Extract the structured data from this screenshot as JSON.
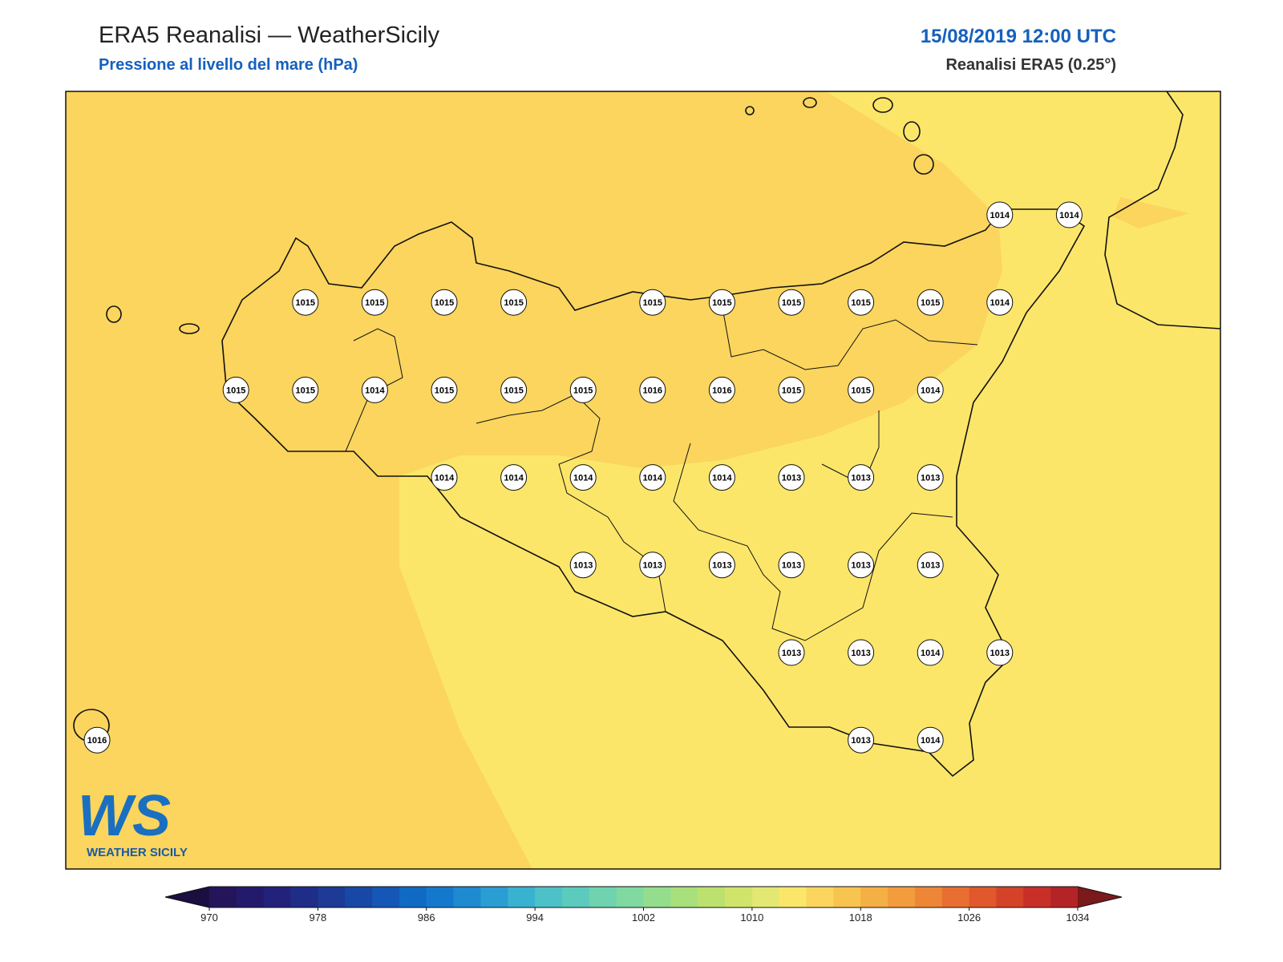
{
  "header": {
    "title": "ERA5 Reanalisi — WeatherSicily",
    "subtitle": "Pressione al livello del mare (hPa)",
    "date": "15/08/2019 12:00 UTC",
    "source": "Reanalisi ERA5 (0.25°)"
  },
  "logo": {
    "mark": "WS",
    "text": "WEATHER SICILY"
  },
  "stations": {
    "grid": [
      [
        null,
        null,
        null,
        null,
        null,
        null,
        null,
        null,
        null,
        null,
        null,
        null,
        null,
        1014,
        1014
      ],
      [
        null,
        null,
        null,
        1015,
        1015,
        1015,
        1015,
        null,
        1015,
        1015,
        1015,
        1015,
        1015,
        1014,
        null
      ],
      [
        null,
        null,
        1015,
        1015,
        1014,
        1015,
        1015,
        1015,
        1016,
        1016,
        1015,
        1015,
        1014,
        null,
        null
      ],
      [
        null,
        null,
        null,
        null,
        null,
        1014,
        1014,
        1014,
        1014,
        1014,
        1013,
        1013,
        1013,
        null,
        null
      ],
      [
        null,
        null,
        null,
        null,
        null,
        null,
        null,
        1013,
        1013,
        1013,
        1013,
        1013,
        1013,
        null,
        null
      ],
      [
        null,
        null,
        null,
        null,
        null,
        null,
        null,
        null,
        null,
        null,
        1013,
        1013,
        1014,
        1013,
        null
      ],
      [
        1016,
        null,
        null,
        null,
        null,
        null,
        null,
        null,
        null,
        null,
        null,
        1013,
        1014,
        null,
        null
      ]
    ]
  },
  "colorbar": {
    "lim": [
      970,
      1034
    ],
    "ticks": [
      970,
      978,
      986,
      994,
      1002,
      1010,
      1018,
      1026,
      1034
    ],
    "colors": [
      "#24155a",
      "#231a6b",
      "#22227a",
      "#1f2d88",
      "#1c3a96",
      "#1848a6",
      "#1457b6",
      "#0f6ac4",
      "#1479cc",
      "#1e8ad0",
      "#2a9dd2",
      "#38b2d0",
      "#4cc2c8",
      "#5ccbbd",
      "#6fd3b0",
      "#80d9a0",
      "#94dd8c",
      "#a8e07c",
      "#bce16e",
      "#d0e46c",
      "#e2e872",
      "#fce66a",
      "#fbd55d",
      "#f8c450",
      "#f5b045",
      "#f29c3e",
      "#ee8637",
      "#e86f31",
      "#e0582c",
      "#d44228",
      "#c82f27",
      "#b42326"
    ],
    "under": "#1a0f40",
    "over": "#7a1a1a"
  }
}
